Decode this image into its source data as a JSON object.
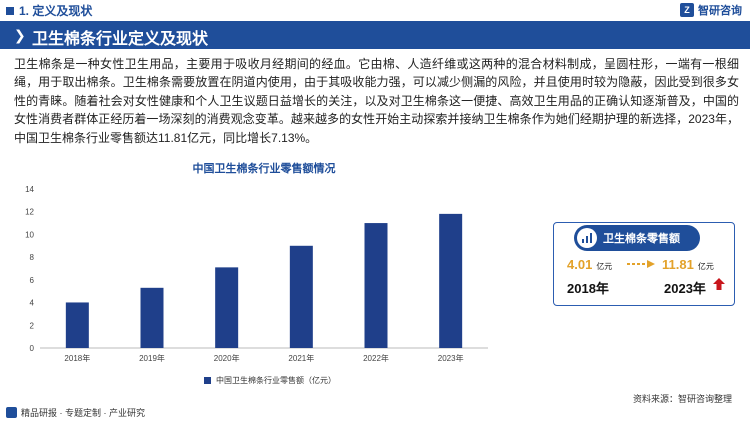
{
  "header": {
    "section": "1. 定义及现状",
    "brand": "智研咨询",
    "brand_logo": "Z"
  },
  "title": "卫生棉条行业定义及现状",
  "body_text": "卫生棉条是一种女性卫生用品，主要用于吸收月经期间的经血。它由棉、人造纤维或这两种的混合材料制成，呈圆柱形，一端有一根细绳，用于取出棉条。卫生棉条需要放置在阴道内使用，由于其吸收能力强，可以减少侧漏的风险，并且使用时较为隐蔽，因此受到很多女性的青睐。随着社会对女性健康和个人卫生议题日益增长的关注，以及对卫生棉条这一便捷、高效卫生用品的正确认知逐渐普及，中国的女性消费者群体正经历着一场深刻的消费观念变革。越来越多的女性开始主动探索并接纳卫生棉条作为她们经期护理的新选择，2023年，中国卫生棉条行业零售额达11.81亿元，同比增长7.13%。",
  "chart_data": {
    "type": "bar",
    "title": "中国卫生棉条行业零售额情况",
    "categories": [
      "2018年",
      "2019年",
      "2020年",
      "2021年",
      "2022年",
      "2023年"
    ],
    "series": [
      {
        "name": "中国卫生棉条行业零售额（亿元）",
        "values": [
          4.01,
          5.3,
          7.1,
          9.0,
          11.0,
          11.81
        ]
      }
    ],
    "ylim": [
      0,
      14
    ],
    "yticks": [
      0,
      2,
      4,
      6,
      8,
      10,
      12,
      14
    ],
    "grid": false,
    "legend": "bottom",
    "colors": {
      "bar": "#1f3f8a",
      "axis": "#bbbbbb"
    }
  },
  "card": {
    "title": "卫生棉条零售额",
    "left": {
      "value": "4.01",
      "unit": "亿元",
      "year": "2018年"
    },
    "right": {
      "value": "11.81",
      "unit": "亿元",
      "year": "2023年"
    },
    "colors": {
      "value": "#e3a22a",
      "arrow": "#c8161d",
      "head": "#1f4e9a"
    }
  },
  "footer": {
    "left": "精品研报 · 专题定制 · 产业研究",
    "source": "资料来源：智研咨询整理"
  }
}
